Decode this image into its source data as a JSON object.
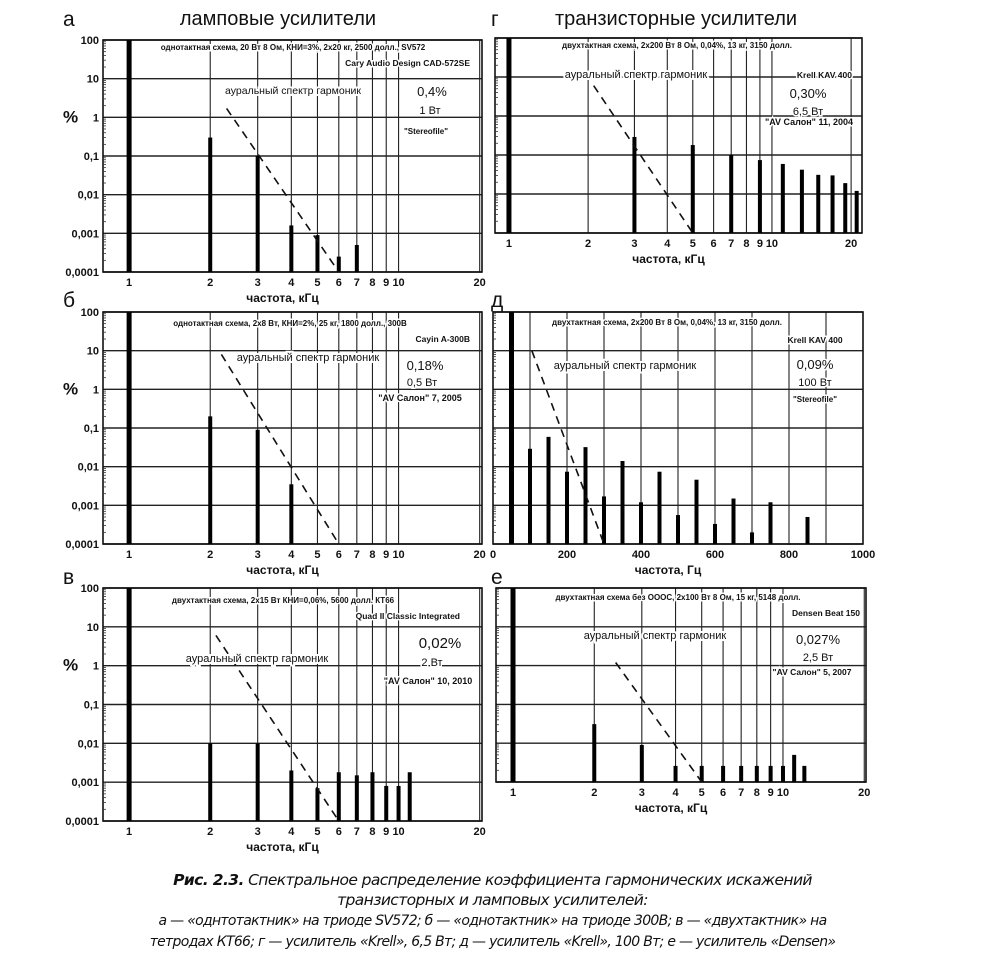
{
  "header": {
    "left_title": "ламповые усилители",
    "right_title": "транзисторные усилители"
  },
  "caption": {
    "label": "Рис. 2.3.",
    "title": "Спектральное распределение коэффициента гармонических искажений",
    "title2": "транзисторных и ламповых усилителей:",
    "line3": "а — «однтотактник» на триоде SV572; б — «однотактник» на триоде 300В; в — «двухтактник» на",
    "line4": "тетродах КТ66; г — усилитель «Krell», 6,5 Вт; д — усилитель «Krell», 100 Вт; е — усилитель «Densen»"
  },
  "chart_data": [
    {
      "panel": "а",
      "type": "bar",
      "xscale": "log",
      "yscale": "log",
      "xlim": [
        0.8,
        20.4
      ],
      "ylim": [
        0.0001,
        100
      ],
      "grid": true,
      "xlabel": "частота, кГц",
      "ylabel": "%",
      "xticks": [
        1,
        2,
        3,
        4,
        5,
        6,
        7,
        8,
        9,
        10,
        20
      ],
      "xtick_labels": [
        "1",
        "2",
        "3",
        "4",
        "5",
        "6",
        "7",
        "8",
        "9",
        "10",
        "20"
      ],
      "ytick_labels": [
        "100",
        "10",
        "1",
        "0,1",
        "0,01",
        "0,001",
        "0,0001"
      ],
      "x": [
        1,
        2,
        3,
        4,
        5,
        6,
        7
      ],
      "y": [
        100,
        0.3,
        0.1,
        0.0016,
        0.0009,
        0.00025,
        0.0005
      ],
      "spec": "однотактная схема, 20 Вт 8 Ом, КНИ=3%, 2х20 кг, 2500 долл., SV572",
      "model": "Cary Audio Design CAD-572SE",
      "thd": "0,4%",
      "power": "1 Вт",
      "source": "\"Stereofile\"",
      "aural_label": "ауральный спектр гармоник",
      "aural_line": [
        [
          2.3,
          1.7
        ],
        [
          6,
          0.0001
        ]
      ]
    },
    {
      "panel": "б",
      "type": "bar",
      "xscale": "log",
      "yscale": "log",
      "xlim": [
        0.8,
        20.4
      ],
      "ylim": [
        0.0001,
        100
      ],
      "grid": true,
      "xlabel": "частота, кГц",
      "ylabel": "%",
      "xticks": [
        1,
        2,
        3,
        4,
        5,
        6,
        7,
        8,
        9,
        10,
        20
      ],
      "xtick_labels": [
        "1",
        "2",
        "3",
        "4",
        "5",
        "6",
        "7",
        "8",
        "9",
        "10",
        "20"
      ],
      "ytick_labels": [
        "100",
        "10",
        "1",
        "0,1",
        "0,01",
        "0,001",
        "0,0001"
      ],
      "x": [
        1,
        2,
        3,
        4
      ],
      "y": [
        100,
        0.2,
        0.09,
        0.0035
      ],
      "spec": "однотактная схема, 2х8 Вт, КНИ=2%, 25 кг, 1800 долл., 300В",
      "model": "Cayin A-300B",
      "thd": "0,18%",
      "power": "0,5 Вт",
      "source": "\"AV Салон\" 7, 2005",
      "aural_label": "ауральный спектр гармоник",
      "aural_line": [
        [
          2.2,
          8
        ],
        [
          6,
          0.0001
        ]
      ]
    },
    {
      "panel": "в",
      "type": "bar",
      "xscale": "log",
      "yscale": "log",
      "xlim": [
        0.8,
        20.4
      ],
      "ylim": [
        0.0001,
        100
      ],
      "grid": true,
      "xlabel": "частота, кГц",
      "ylabel": "%",
      "xticks": [
        1,
        2,
        3,
        4,
        5,
        6,
        7,
        8,
        9,
        10,
        20
      ],
      "xtick_labels": [
        "1",
        "2",
        "3",
        "4",
        "5",
        "6",
        "7",
        "8",
        "9",
        "10",
        "20"
      ],
      "ytick_labels": [
        "100",
        "10",
        "1",
        "0,1",
        "0,01",
        "0,001",
        "0,0001"
      ],
      "x": [
        1,
        2,
        3,
        4,
        5,
        6,
        7,
        8,
        9,
        10,
        11
      ],
      "y": [
        100,
        0.01,
        0.01,
        0.002,
        0.0007,
        0.0018,
        0.0015,
        0.0018,
        0.0008,
        0.0008,
        0.0018
      ],
      "spec": "двухтактная схема, 2х15 Вт КНИ=0,06%,  5600 долл. КТ66",
      "model": "Quad II Classic Integrated",
      "thd": "0,02%",
      "power": "2 Вт",
      "source": "\"AV Салон\" 10, 2010",
      "aural_label": "ауральный спектр гармоник",
      "aural_line": [
        [
          2.1,
          6
        ],
        [
          6,
          0.0001
        ]
      ]
    },
    {
      "panel": "г",
      "type": "bar",
      "xscale": "log",
      "yscale": "log",
      "xlim": [
        0.885,
        22
      ],
      "ylim": [
        0.001,
        100
      ],
      "grid": true,
      "xlabel": "частота, кГц",
      "ylabel": "",
      "xticks": [
        1,
        2,
        3,
        4,
        5,
        6,
        7,
        8,
        9,
        10,
        20
      ],
      "xtick_labels": [
        "1",
        "2",
        "3",
        "4",
        "5",
        "6",
        "7",
        "8",
        "9",
        "10",
        "20"
      ],
      "ytick_labels": [],
      "x": [
        1,
        3,
        5,
        7,
        9,
        11,
        13,
        15,
        17,
        19,
        21
      ],
      "y": [
        100,
        0.29,
        0.18,
        0.1,
        0.074,
        0.059,
        0.042,
        0.031,
        0.03,
        0.019,
        0.012
      ],
      "spec": "двухтактная схема, 2х200 Вт 8 Ом, 0,04%, 13 кг, 3150 долл.",
      "model": "Krell KAV 400",
      "thd": "0,30%",
      "power": "6,5 Вт",
      "source": "\"AV Салон\" 11, 2004",
      "aural_label": "ауральный спектр гармоник",
      "aural_line": [
        [
          2.1,
          6
        ],
        [
          5,
          0.001
        ]
      ]
    },
    {
      "panel": "д",
      "type": "bar",
      "xscale": "linear",
      "yscale": "log",
      "xlim": [
        0,
        1000
      ],
      "ylim": [
        0.0001,
        100
      ],
      "grid": true,
      "xlabel": "частота, Гц",
      "ylabel": "",
      "xticks": [
        0,
        200,
        400,
        600,
        800,
        1000
      ],
      "xtick_labels": [
        "0",
        "200",
        "400",
        "600",
        "800",
        "1000"
      ],
      "ytick_labels": [],
      "x": [
        50,
        100,
        150,
        200,
        250,
        300,
        350,
        400,
        450,
        500,
        550,
        600,
        650,
        700,
        750,
        800,
        850
      ],
      "y": [
        100,
        0.029,
        0.059,
        0.0074,
        0.032,
        0.0017,
        0.014,
        0.0012,
        0.0074,
        0.00056,
        0.0046,
        0.00033,
        0.0015,
        0.0002,
        0.0012,
        0.0001,
        0.0005
      ],
      "spec": "двухтактная схема, 2х200 Вт 8 Ом, 0,04%, 13 кг, 3150 долл.",
      "model": "Krell KAV 400",
      "thd": "0,09%",
      "power": "100 Вт",
      "source": "\"Stereofile\"",
      "aural_label": "ауральный спектр гармоник",
      "aural_line": [
        [
          105,
          10
        ],
        [
          300,
          0.0001
        ]
      ]
    },
    {
      "panel": "е",
      "type": "bar",
      "xscale": "log",
      "yscale": "log",
      "xlim": [
        0.865,
        20.3
      ],
      "ylim": [
        0.001,
        100
      ],
      "grid": true,
      "xlabel": "частота, кГц",
      "ylabel": "",
      "xticks": [
        1,
        2,
        3,
        4,
        5,
        6,
        7,
        8,
        9,
        10,
        20
      ],
      "xtick_labels": [
        "1",
        "2",
        "3",
        "4",
        "5",
        "6",
        "7",
        "8",
        "9",
        "10",
        "20"
      ],
      "ytick_labels": [],
      "x": [
        1,
        2,
        3,
        4,
        5,
        6,
        7,
        8,
        9,
        10,
        11,
        12
      ],
      "y": [
        100,
        0.031,
        0.009,
        0.0026,
        0.0026,
        0.0026,
        0.0026,
        0.0026,
        0.0026,
        0.0026,
        0.005,
        0.0026
      ],
      "spec": "двухтактная схема без ОООС, 2х100 Вт 8 Ом, 15 кг, 5148 долл.",
      "model": "Densen Beat 150",
      "thd": "0,027%",
      "power": "2,5 Вт",
      "source": "\"AV Салон\" 5, 2007",
      "aural_label": "ауральный спектр гармоник",
      "aural_line": [
        [
          2.4,
          1.2
        ],
        [
          5,
          0.001
        ]
      ]
    }
  ]
}
